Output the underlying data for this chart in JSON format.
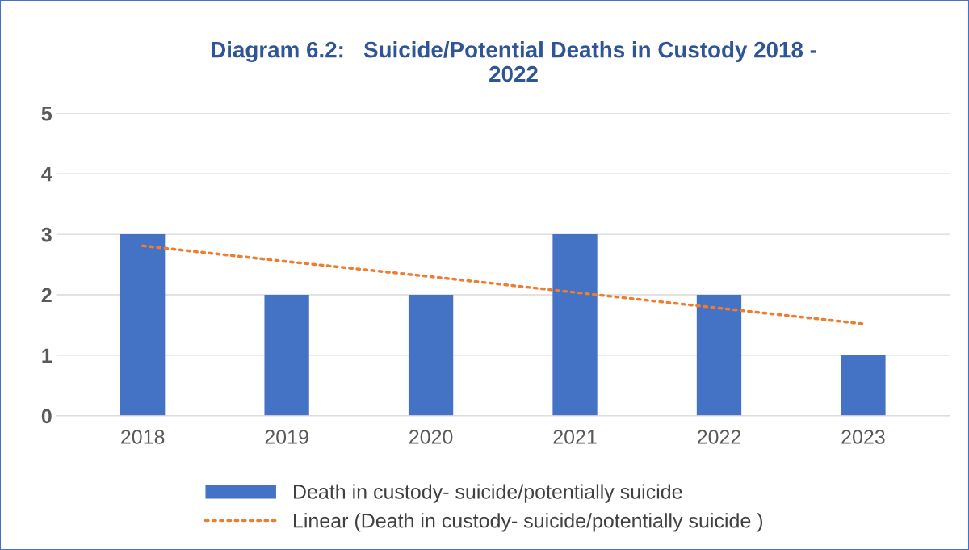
{
  "chart_data": {
    "type": "bar",
    "title": "Diagram 6.2:   Suicide/Potential Deaths in Custody 2018 -\n2022",
    "categories": [
      "2018",
      "2019",
      "2020",
      "2021",
      "2022",
      "2023"
    ],
    "series": [
      {
        "name": "Death in custody- suicide/potentially suicide",
        "color": "#4472c4",
        "values": [
          3,
          2,
          2,
          3,
          2,
          1
        ]
      },
      {
        "name": "Linear (Death in custody- suicide/potentially suicide )",
        "type": "line",
        "color": "#ed7d31",
        "line_style": "dotted",
        "values": [
          2.81,
          2.55,
          2.3,
          2.04,
          1.78,
          1.52
        ]
      }
    ],
    "ylim": [
      0,
      5
    ],
    "yticks": [
      0,
      1,
      2,
      3,
      4,
      5
    ],
    "grid": "y",
    "legend": "bottom"
  }
}
